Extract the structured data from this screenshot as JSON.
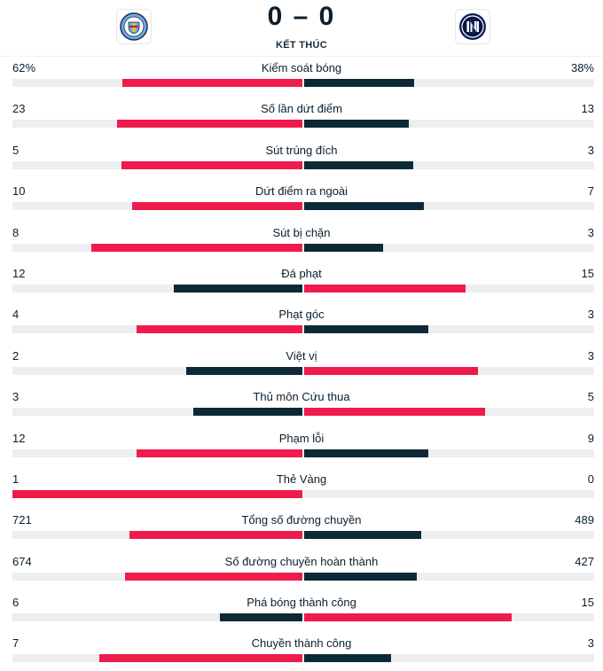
{
  "header": {
    "home_logo_icon": "manchester-city-crest-icon",
    "away_logo_icon": "inter-crest-icon",
    "score": "0 – 0",
    "status": "KẾT THÚC"
  },
  "colors": {
    "leader": "#ef1b4c",
    "trailer": "#0c2a36",
    "track": "#eceef0"
  },
  "stats": [
    {
      "label": "Kiểm soát bóng",
      "home": "62%",
      "away": "38%",
      "home_value": 62,
      "away_value": 38
    },
    {
      "label": "Số lần dứt điểm",
      "home": "23",
      "away": "13",
      "home_value": 23,
      "away_value": 13
    },
    {
      "label": "Sút trúng đích",
      "home": "5",
      "away": "3",
      "home_value": 5,
      "away_value": 3
    },
    {
      "label": "Dứt điểm ra ngoài",
      "home": "10",
      "away": "7",
      "home_value": 10,
      "away_value": 7
    },
    {
      "label": "Sút bị chặn",
      "home": "8",
      "away": "3",
      "home_value": 8,
      "away_value": 3
    },
    {
      "label": "Đá phạt",
      "home": "12",
      "away": "15",
      "home_value": 12,
      "away_value": 15
    },
    {
      "label": "Phạt góc",
      "home": "4",
      "away": "3",
      "home_value": 4,
      "away_value": 3
    },
    {
      "label": "Việt vị",
      "home": "2",
      "away": "3",
      "home_value": 2,
      "away_value": 3
    },
    {
      "label": "Thủ môn Cứu thua",
      "home": "3",
      "away": "5",
      "home_value": 3,
      "away_value": 5
    },
    {
      "label": "Phạm lỗi",
      "home": "12",
      "away": "9",
      "home_value": 12,
      "away_value": 9
    },
    {
      "label": "Thẻ Vàng",
      "home": "1",
      "away": "0",
      "home_value": 1,
      "away_value": 0
    },
    {
      "label": "Tổng số đường chuyền",
      "home": "721",
      "away": "489",
      "home_value": 721,
      "away_value": 489
    },
    {
      "label": "Số đường chuyền hoàn thành",
      "home": "674",
      "away": "427",
      "home_value": 674,
      "away_value": 427
    },
    {
      "label": "Phá bóng thành công",
      "home": "6",
      "away": "15",
      "home_value": 6,
      "away_value": 15
    },
    {
      "label": "Chuyền thành công",
      "home": "7",
      "away": "3",
      "home_value": 7,
      "away_value": 3
    }
  ]
}
